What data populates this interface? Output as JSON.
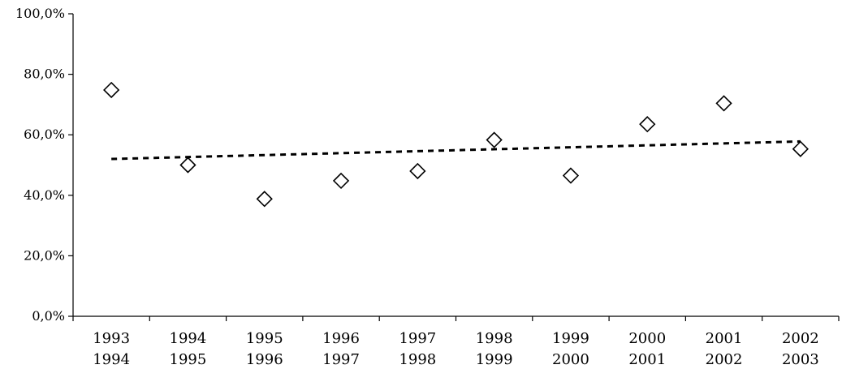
{
  "chart_data": {
    "type": "scatter",
    "title": "",
    "xlabel": "",
    "ylabel": "",
    "categories": [
      [
        "1993",
        "1994"
      ],
      [
        "1994",
        "1995"
      ],
      [
        "1995",
        "1996"
      ],
      [
        "1996",
        "1997"
      ],
      [
        "1997",
        "1998"
      ],
      [
        "1998",
        "1999"
      ],
      [
        "1999",
        "2000"
      ],
      [
        "2000",
        "2001"
      ],
      [
        "2001",
        "2002"
      ],
      [
        "2002",
        "2003"
      ]
    ],
    "series": [
      {
        "marker": "diamond",
        "values": [
          74.8,
          50.0,
          38.8,
          44.8,
          48.0,
          58.3,
          46.5,
          63.5,
          70.4,
          55.3
        ]
      }
    ],
    "trendline": {
      "style": "dashed",
      "start": 52.0,
      "end": 57.8
    },
    "ylim": [
      0,
      100
    ],
    "yticks": [
      "0,0%",
      "20,0%",
      "40,0%",
      "60,0%",
      "80,0%",
      "100,0%"
    ],
    "grid": false,
    "legend": "none",
    "colors": {
      "marker_fill": "#ffffff",
      "marker_stroke": "#000000",
      "axis": "#000000",
      "trend": "#000000"
    }
  }
}
